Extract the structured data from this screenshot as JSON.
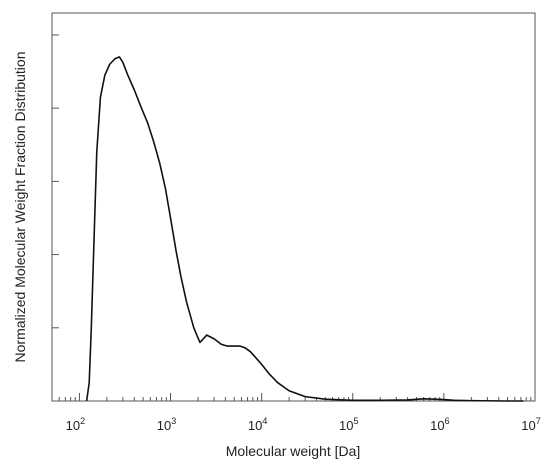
{
  "chart_data": {
    "type": "line",
    "xlabel": "Molecular weight [Da]",
    "ylabel": "Normalized Molecular Weight Fraction Distribution",
    "x_scale": "log",
    "xlim": [
      50,
      10000000
    ],
    "ylim": [
      0,
      1.06
    ],
    "x_ticks": [
      {
        "value": 100,
        "base": "10",
        "exp": "2"
      },
      {
        "value": 1000,
        "base": "10",
        "exp": "3"
      },
      {
        "value": 10000,
        "base": "10",
        "exp": "4"
      },
      {
        "value": 100000,
        "base": "10",
        "exp": "5"
      },
      {
        "value": 1000000,
        "base": "10",
        "exp": "6"
      },
      {
        "value": 10000000,
        "base": "10",
        "exp": "7"
      }
    ],
    "y_ticks": [
      0,
      0.2,
      0.4,
      0.6,
      0.8,
      1.0
    ],
    "y_tick_labels_visible": false,
    "grid": false,
    "line_color": "#111111",
    "series": [
      {
        "x": [
          120,
          128,
          135,
          145,
          155,
          170,
          190,
          215,
          245,
          275,
          300,
          340,
          400,
          480,
          560,
          650,
          760,
          880,
          1000,
          1150,
          1300,
          1500,
          1800,
          2100,
          2500,
          3000,
          3600,
          4200,
          5000,
          5800,
          6600,
          7500,
          8500,
          10000,
          12000,
          15000,
          20000,
          30000,
          50000,
          100000,
          200000,
          400000,
          600000,
          800000,
          1000000,
          1300000,
          2000000,
          5000000,
          7500000
        ],
        "y": [
          0.0,
          0.05,
          0.2,
          0.45,
          0.68,
          0.83,
          0.89,
          0.92,
          0.935,
          0.94,
          0.925,
          0.89,
          0.85,
          0.8,
          0.76,
          0.71,
          0.65,
          0.58,
          0.5,
          0.41,
          0.34,
          0.27,
          0.2,
          0.16,
          0.18,
          0.17,
          0.155,
          0.15,
          0.15,
          0.15,
          0.145,
          0.135,
          0.12,
          0.1,
          0.075,
          0.05,
          0.028,
          0.012,
          0.005,
          0.002,
          0.002,
          0.003,
          0.006,
          0.005,
          0.004,
          0.002,
          0.001,
          0.0,
          0.0
        ]
      }
    ]
  }
}
